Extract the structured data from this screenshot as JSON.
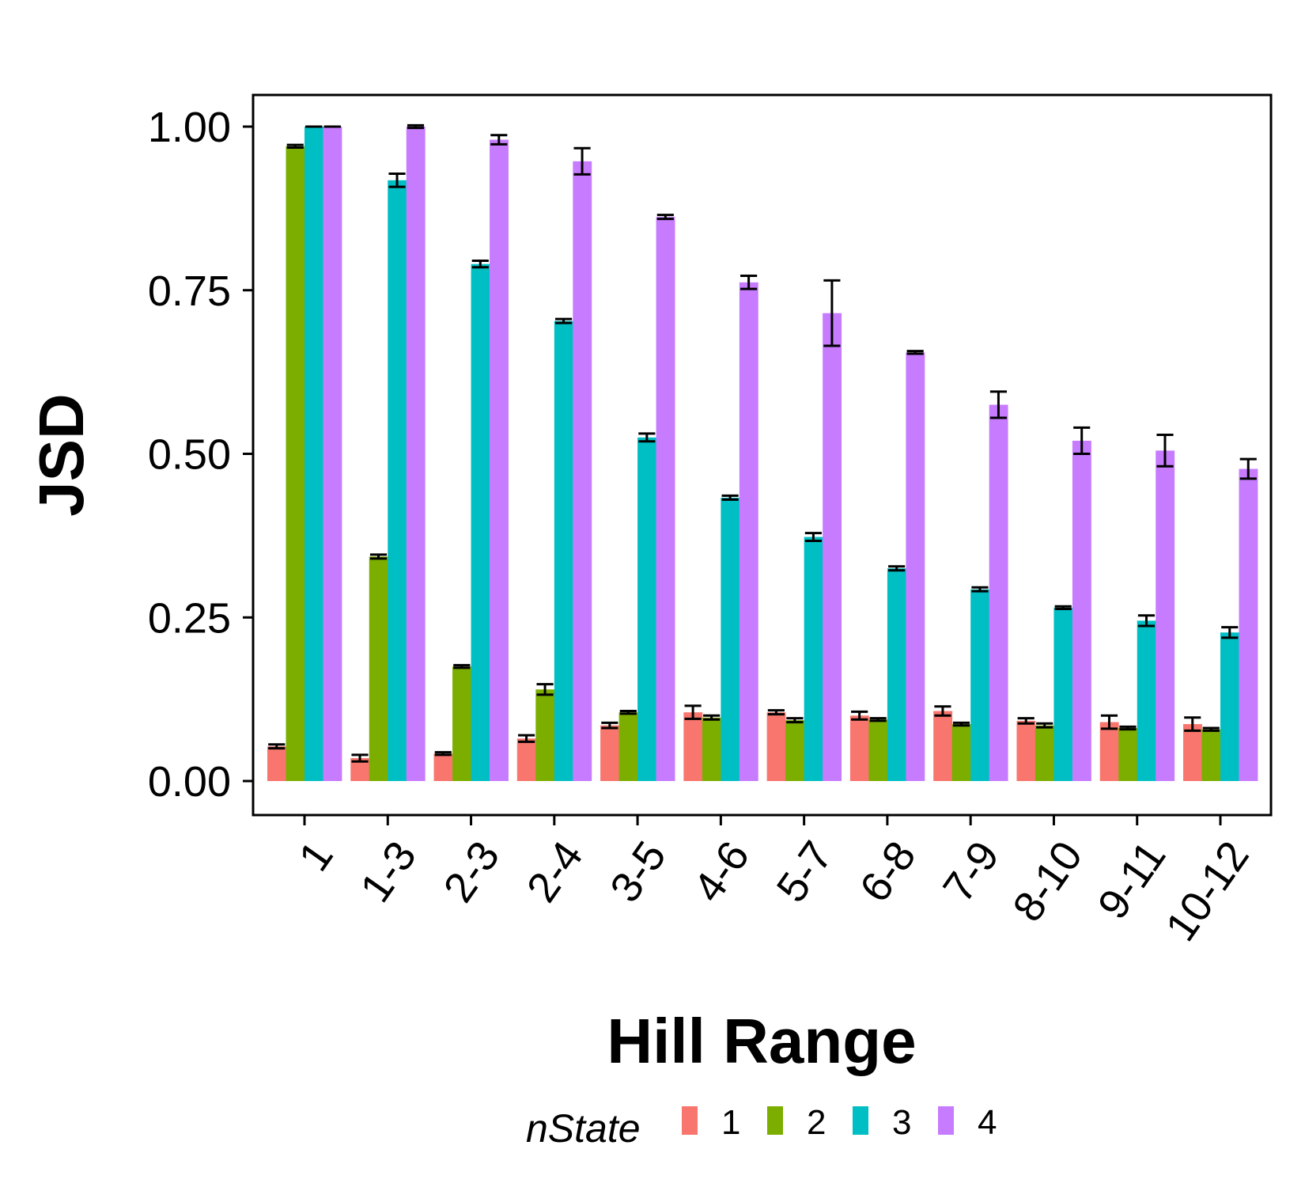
{
  "chart_data": {
    "type": "bar",
    "xlabel": "Hill Range",
    "ylabel": "JSD",
    "ylim": [
      0,
      1.0
    ],
    "y_ticks": [
      "0.00",
      "0.25",
      "0.50",
      "0.75",
      "1.00"
    ],
    "y_tick_values": [
      0,
      0.25,
      0.5,
      0.75,
      1.0
    ],
    "grid": false,
    "legend": {
      "title": "nState",
      "position": "bottom"
    },
    "categories": [
      "1",
      "1-3",
      "2-3",
      "2-4",
      "3-5",
      "4-6",
      "5-7",
      "6-8",
      "7-9",
      "8-10",
      "9-11",
      "10-12"
    ],
    "series": [
      {
        "name": "1",
        "color": "#F8766D",
        "values": [
          0.053,
          0.035,
          0.042,
          0.065,
          0.085,
          0.105,
          0.105,
          0.1,
          0.107,
          0.092,
          0.09,
          0.087
        ],
        "errors": [
          0.003,
          0.005,
          0.002,
          0.005,
          0.004,
          0.01,
          0.003,
          0.006,
          0.007,
          0.004,
          0.01,
          0.01
        ]
      },
      {
        "name": "2",
        "color": "#7CAE00",
        "values": [
          0.97,
          0.343,
          0.175,
          0.14,
          0.105,
          0.097,
          0.093,
          0.094,
          0.087,
          0.085,
          0.081,
          0.079
        ],
        "errors": [
          0.002,
          0.003,
          0.002,
          0.008,
          0.002,
          0.003,
          0.003,
          0.002,
          0.002,
          0.003,
          0.002,
          0.002
        ]
      },
      {
        "name": "3",
        "color": "#00BFC4",
        "values": [
          1.0,
          0.918,
          0.79,
          0.703,
          0.525,
          0.433,
          0.373,
          0.325,
          0.293,
          0.265,
          0.245,
          0.227
        ],
        "errors": [
          0.0,
          0.01,
          0.005,
          0.003,
          0.006,
          0.003,
          0.006,
          0.003,
          0.003,
          0.002,
          0.008,
          0.008
        ]
      },
      {
        "name": "4",
        "color": "#C77CFF",
        "values": [
          1.0,
          1.0,
          0.98,
          0.947,
          0.862,
          0.762,
          0.715,
          0.655,
          0.575,
          0.52,
          0.505,
          0.477
        ],
        "errors": [
          0.0,
          0.002,
          0.007,
          0.02,
          0.003,
          0.01,
          0.05,
          0.002,
          0.02,
          0.02,
          0.024,
          0.015
        ]
      }
    ]
  }
}
